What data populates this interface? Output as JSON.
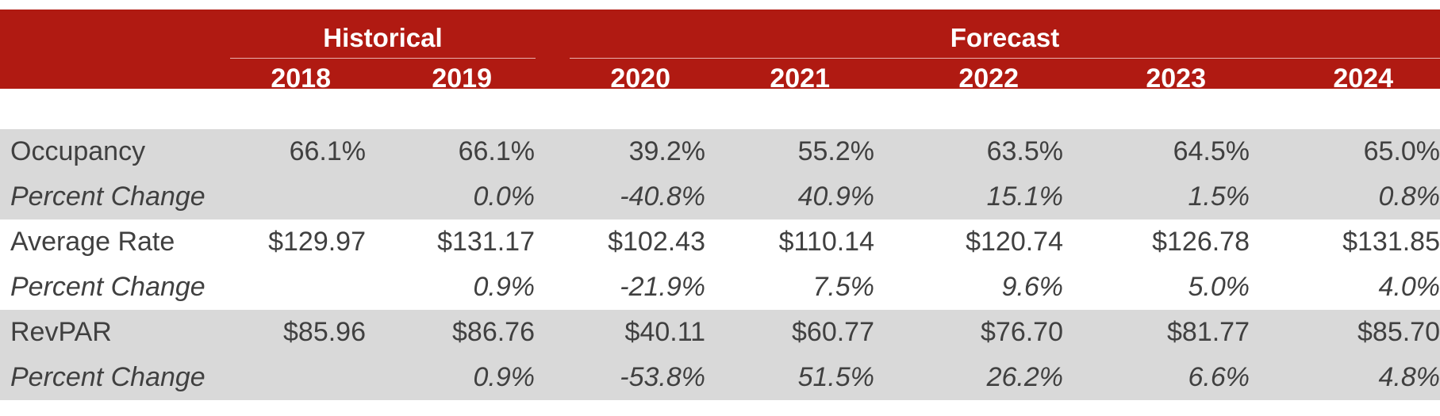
{
  "header": {
    "groups": [
      {
        "label": "Historical"
      },
      {
        "label": "Forecast"
      }
    ],
    "years": [
      "2018",
      "2019",
      "2020",
      "2021",
      "2022",
      "2023",
      "2024"
    ]
  },
  "rows": [
    {
      "label": "Occupancy",
      "values": [
        "66.1%",
        "66.1%",
        "39.2%",
        "55.2%",
        "63.5%",
        "64.5%",
        "65.0%"
      ],
      "style": "normal",
      "shaded": true
    },
    {
      "label": "Percent Change",
      "values": [
        "",
        "0.0%",
        "-40.8%",
        "40.9%",
        "15.1%",
        "1.5%",
        "0.8%"
      ],
      "style": "italic",
      "shaded": true
    },
    {
      "label": "Average Rate",
      "values": [
        "$129.97",
        "$131.17",
        "$102.43",
        "$110.14",
        "$120.74",
        "$126.78",
        "$131.85"
      ],
      "style": "normal",
      "shaded": false
    },
    {
      "label": "Percent Change",
      "values": [
        "",
        "0.9%",
        "-21.9%",
        "7.5%",
        "9.6%",
        "5.0%",
        "4.0%"
      ],
      "style": "italic",
      "shaded": false
    },
    {
      "label": "RevPAR",
      "values": [
        "$85.96",
        "$86.76",
        "$40.11",
        "$60.77",
        "$76.70",
        "$81.77",
        "$85.70"
      ],
      "style": "normal",
      "shaded": true
    },
    {
      "label": "Percent Change",
      "values": [
        "",
        "0.9%",
        "-53.8%",
        "51.5%",
        "26.2%",
        "6.6%",
        "4.8%"
      ],
      "style": "italic",
      "shaded": true
    }
  ],
  "colors": {
    "header_bg": "#b01a12",
    "header_text": "#ffffff",
    "band_shade": "#d9d9d9",
    "body_text": "#404040"
  }
}
